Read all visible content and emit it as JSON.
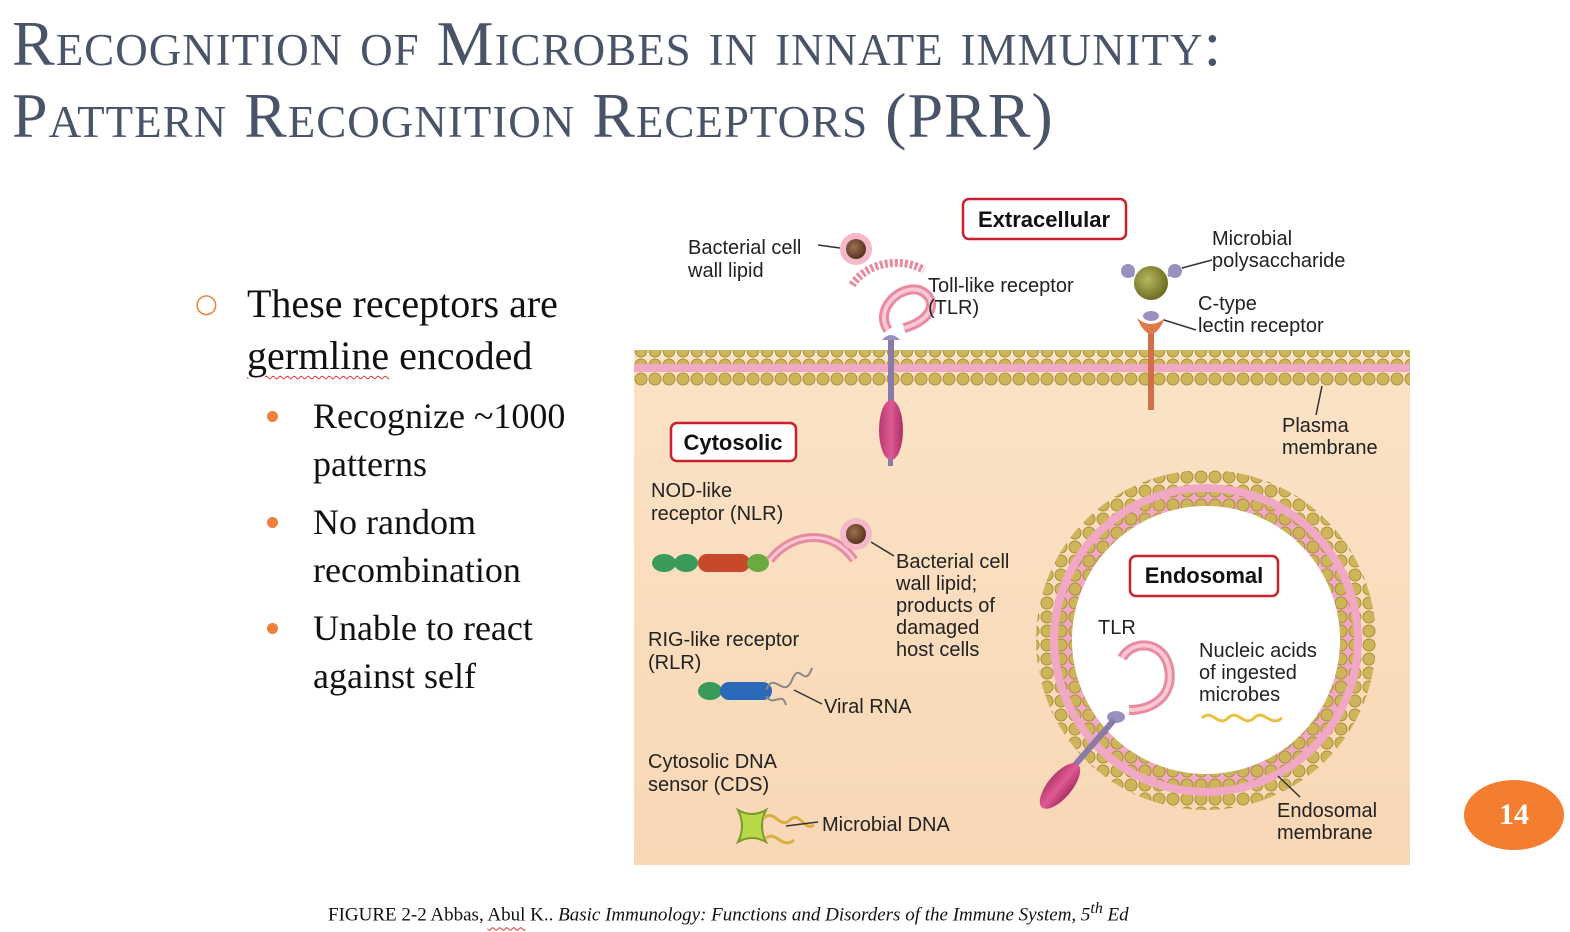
{
  "slide": {
    "title_line1": "Recognition of Microbes in innate immunity:",
    "title_line2": "Pattern Recognition Receptors (PRR)",
    "page_number": "14"
  },
  "bullets": {
    "main_pre": "These receptors are ",
    "main_em": "germline",
    "main_post": " encoded",
    "sub": [
      "Recognize ~1000 patterns",
      "No random recombination",
      "Unable to react against self"
    ]
  },
  "diagram": {
    "box_extracellular": "Extracellular",
    "box_cytosolic": "Cytosolic",
    "box_endosomal": "Endosomal",
    "bacterial_lipid_1": "Bacterial cell",
    "bacterial_lipid_2": "wall lipid",
    "tlr_1": "Toll-like receptor",
    "tlr_2": "(TLR)",
    "microbial_poly_1": "Microbial",
    "microbial_poly_2": "polysaccharide",
    "ctype_1": "C-type",
    "ctype_2": "lectin receptor",
    "plasma_1": "Plasma",
    "plasma_2": "membrane",
    "nlr_1": "NOD-like",
    "nlr_2": "receptor (NLR)",
    "bl2_1": "Bacterial cell",
    "bl2_2": "wall lipid;",
    "bl2_3": "products of",
    "bl2_4": "damaged",
    "bl2_5": "host cells",
    "rlr_1": "RIG-like receptor",
    "rlr_2": "(RLR)",
    "viral_rna": "Viral RNA",
    "cds_1": "Cytosolic DNA",
    "cds_2": "sensor (CDS)",
    "microbial_dna": "Microbial DNA",
    "endo_tlr": "TLR",
    "nucleic_1": "Nucleic acids",
    "nucleic_2": "of ingested",
    "nucleic_3": "microbes",
    "endo_mem_1": "Endosomal",
    "endo_mem_2": "membrane"
  },
  "caption": {
    "prefix": "FIGURE 2-2  Abbas, ",
    "name_em": "Abul",
    "name_rest": " K.. ",
    "book": "Basic Immunology: Functions and Disorders of the Immune System, 5",
    "sup": "th",
    "ed": " Ed"
  }
}
